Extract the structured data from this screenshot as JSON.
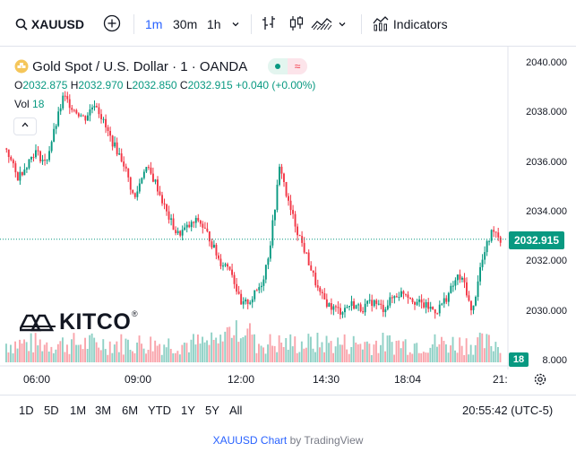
{
  "toolbar": {
    "symbol": "XAUUSD",
    "intervals": [
      "1m",
      "30m",
      "1h"
    ],
    "active_interval": "1m",
    "indicators_label": "Indicators"
  },
  "legend": {
    "title": "Gold Spot / U.S. Dollar · 1 · OANDA",
    "open_key": "O",
    "open": "2032.875",
    "high_key": "H",
    "high": "2032.970",
    "low_key": "L",
    "low": "2032.850",
    "close_key": "C",
    "close": "2032.915",
    "change": "+0.040 (+0.00%)",
    "vol_label": "Vol",
    "vol_value": "18",
    "collapse_icon": "chevron-up-icon"
  },
  "colors": {
    "up": "#089981",
    "down": "#f23645",
    "accent": "#2962ff"
  },
  "watermark": {
    "brand": "KITCO"
  },
  "price_scale": {
    "ticks": [
      "2040.000",
      "2038.000",
      "2036.000",
      "2034.000",
      "2032.000",
      "2030.000",
      "8.000"
    ],
    "last_price": "2032.915",
    "volume_badge": "18"
  },
  "time_scale": {
    "ticks": [
      "06:00",
      "09:00",
      "12:00",
      "14:30",
      "18:04",
      "21:"
    ]
  },
  "ranges": [
    "1D",
    "5D",
    "1M",
    "3M",
    "6M",
    "YTD",
    "1Y",
    "5Y",
    "All"
  ],
  "clock": "20:55:42 (UTC-5)",
  "footer": {
    "link": "XAUUSD Chart",
    "by": "by TradingView"
  },
  "chart_data": {
    "type": "candlestick",
    "title": "Gold Spot / U.S. Dollar · 1 · OANDA",
    "ylim": [
      2028.2,
      2040.4
    ],
    "x_ticks": [
      "06:00",
      "09:00",
      "12:00",
      "14:30",
      "18:04",
      "21:"
    ],
    "y_ticks": [
      2040,
      2038,
      2036,
      2034,
      2032,
      2030
    ],
    "price_path": [
      [
        0,
        2036.6
      ],
      [
        3,
        2035.4
      ],
      [
        5,
        2035.8
      ],
      [
        8,
        2036.5
      ],
      [
        11,
        2036.0
      ],
      [
        14,
        2037.6
      ],
      [
        16,
        2038.7
      ],
      [
        19,
        2038.2
      ],
      [
        22,
        2037.8
      ],
      [
        25,
        2038.5
      ],
      [
        28,
        2037.4
      ],
      [
        30,
        2036.8
      ],
      [
        33,
        2036.0
      ],
      [
        36,
        2034.5
      ],
      [
        39,
        2035.9
      ],
      [
        42,
        2035.2
      ],
      [
        45,
        2034.0
      ],
      [
        48,
        2033.1
      ],
      [
        51,
        2033.4
      ],
      [
        54,
        2033.7
      ],
      [
        57,
        2033.0
      ],
      [
        60,
        2032.0
      ],
      [
        63,
        2031.8
      ],
      [
        66,
        2030.2
      ],
      [
        69,
        2030.5
      ],
      [
        72,
        2031.2
      ],
      [
        74,
        2032.5
      ],
      [
        76,
        2034.8
      ],
      [
        77,
        2036.0
      ],
      [
        79,
        2034.5
      ],
      [
        82,
        2033.2
      ],
      [
        85,
        2032.0
      ],
      [
        88,
        2030.7
      ],
      [
        91,
        2030.2
      ],
      [
        94,
        2030.0
      ],
      [
        97,
        2030.3
      ],
      [
        100,
        2030.1
      ],
      [
        103,
        2030.4
      ],
      [
        106,
        2030.1
      ],
      [
        109,
        2030.6
      ],
      [
        112,
        2030.8
      ],
      [
        115,
        2030.4
      ],
      [
        118,
        2030.2
      ],
      [
        121,
        2030.0
      ],
      [
        124,
        2030.6
      ],
      [
        127,
        2031.4
      ],
      [
        129,
        2031.1
      ],
      [
        131,
        2029.8
      ],
      [
        133,
        2031.6
      ],
      [
        135,
        2032.6
      ],
      [
        137,
        2033.4
      ],
      [
        139,
        2032.9
      ]
    ],
    "last_price": 2032.915,
    "volume_last": 18
  }
}
